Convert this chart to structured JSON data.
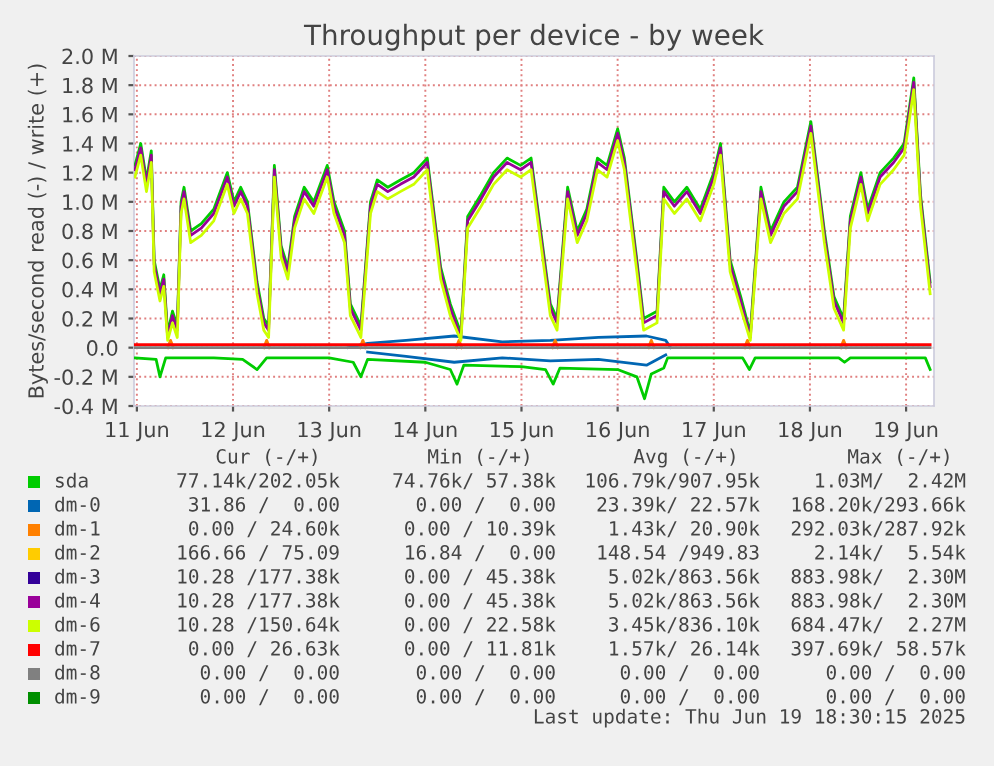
{
  "chart_data": {
    "type": "line",
    "title": "Throughput per device - by week",
    "ylabel": "Bytes/second read (-) / write (+)",
    "x": [
      "2025-06-11T11:31",
      "2025-06-11T12:58",
      "2025-06-11T14:24",
      "2025-06-11T15:36",
      "2025-06-11T16:19",
      "2025-06-11T17:46",
      "2025-06-11T18:43",
      "2025-06-11T19:41",
      "2025-06-11T20:53",
      "2025-06-11T22:05",
      "2025-06-11T23:02",
      "2025-06-11T23:46",
      "2025-06-12T01:26",
      "2025-06-12T04:05",
      "2025-06-12T07:12",
      "2025-06-12T10:34",
      "2025-06-12T12:14",
      "2025-06-12T13:55",
      "2025-06-12T15:36",
      "2025-06-12T18:00",
      "2025-06-12T19:41",
      "2025-06-12T20:53",
      "2025-06-12T22:19",
      "2025-06-13T00:00",
      "2025-06-13T01:41",
      "2025-06-13T03:22",
      "2025-06-13T05:46",
      "2025-06-13T08:10",
      "2025-06-13T11:31",
      "2025-06-13T13:12",
      "2025-06-13T15:50",
      "2025-06-13T17:17",
      "2025-06-13T19:55",
      "2025-06-13T20:38",
      "2025-06-13T22:19",
      "2025-06-14T00:00",
      "2025-06-14T02:38",
      "2025-06-14T05:46",
      "2025-06-14T09:07",
      "2025-06-14T12:29",
      "2025-06-14T15:50",
      "2025-06-14T18:14",
      "2025-06-14T20:53",
      "2025-06-14T22:34",
      "2025-06-15T01:55",
      "2025-06-15T05:02",
      "2025-06-15T08:24",
      "2025-06-15T11:46",
      "2025-06-15T14:24",
      "2025-06-15T16:48",
      "2025-06-15T19:12",
      "2025-06-15T20:53",
      "2025-06-15T23:31",
      "2025-06-16T01:55",
      "2025-06-16T04:19",
      "2025-06-16T06:58",
      "2025-06-16T09:22",
      "2025-06-16T12:00",
      "2025-06-16T13:41",
      "2025-06-16T16:48",
      "2025-06-16T18:29",
      "2025-06-16T21:50",
      "2025-06-16T23:31",
      "2025-06-17T02:10",
      "2025-06-17T05:17",
      "2025-06-17T08:38",
      "2025-06-17T12:00",
      "2025-06-17T13:41",
      "2025-06-17T16:05",
      "2025-06-17T18:43",
      "2025-06-17T21:07",
      "2025-06-17T23:46",
      "2025-06-18T02:10",
      "2025-06-18T05:31",
      "2025-06-18T08:53",
      "2025-06-18T12:14",
      "2025-06-18T15:36",
      "2025-06-18T18:00",
      "2025-06-18T20:24",
      "2025-06-18T22:05",
      "2025-06-19T00:43",
      "2025-06-19T02:24",
      "2025-06-19T05:31",
      "2025-06-19T08:53",
      "2025-06-19T11:31",
      "2025-06-19T13:55",
      "2025-06-19T15:36",
      "2025-06-19T18:00"
    ],
    "series": [
      {
        "name": "sda",
        "color": "#00cc00",
        "values": [
          1.25,
          1.4,
          1.15,
          1.35,
          0.6,
          0.4,
          0.5,
          0.1,
          0.25,
          0.15,
          1.0,
          1.1,
          0.8,
          0.85,
          0.95,
          1.2,
          1.0,
          1.1,
          1.0,
          0.45,
          0.2,
          0.15,
          1.25,
          0.7,
          0.55,
          0.9,
          1.1,
          1.0,
          1.25,
          1.0,
          0.8,
          0.3,
          0.15,
          0.4,
          1.0,
          1.15,
          1.1,
          1.15,
          1.2,
          1.3,
          0.55,
          0.3,
          0.1,
          0.9,
          1.05,
          1.2,
          1.3,
          1.25,
          1.3,
          0.8,
          0.3,
          0.2,
          1.1,
          0.8,
          0.95,
          1.3,
          1.25,
          1.5,
          1.3,
          0.6,
          0.2,
          0.25,
          1.1,
          1.0,
          1.1,
          0.95,
          1.2,
          1.4,
          0.6,
          0.35,
          0.1,
          1.1,
          0.8,
          1.0,
          1.1,
          1.55,
          0.8,
          0.35,
          0.2,
          0.9,
          1.2,
          0.95,
          1.2,
          1.3,
          1.4,
          1.85,
          1.05,
          0.45
        ]
      },
      {
        "color": "#00cc00",
        "x": [
          "2025-06-11T11:31",
          "2025-06-11T16:48",
          "2025-06-11T17:46",
          "2025-06-11T19:12",
          "2025-06-12T07:12",
          "2025-06-12T14:24",
          "2025-06-12T18:00",
          "2025-06-12T20:24",
          "2025-06-13T12:00",
          "2025-06-13T18:00",
          "2025-06-13T19:55",
          "2025-06-13T21:36",
          "2025-06-14T12:00",
          "2025-06-14T18:14",
          "2025-06-14T19:55",
          "2025-06-14T21:36",
          "2025-06-15T12:00",
          "2025-06-15T18:00",
          "2025-06-15T19:55",
          "2025-06-15T21:36",
          "2025-06-16T12:00",
          "2025-06-16T16:48",
          "2025-06-16T18:43",
          "2025-06-16T20:24",
          "2025-06-16T23:31",
          "2025-06-17T00:29",
          "2025-06-17T19:12",
          "2025-06-17T20:53",
          "2025-06-17T22:19",
          "2025-06-18T19:12",
          "2025-06-18T20:38",
          "2025-06-18T22:05",
          "2025-06-19T16:48",
          "2025-06-19T18:00"
        ],
        "values": [
          -0.07,
          -0.08,
          -0.2,
          -0.07,
          -0.07,
          -0.08,
          -0.15,
          -0.07,
          -0.07,
          -0.1,
          -0.2,
          -0.08,
          -0.1,
          -0.15,
          -0.25,
          -0.12,
          -0.13,
          -0.15,
          -0.25,
          -0.14,
          -0.15,
          -0.2,
          -0.35,
          -0.18,
          -0.14,
          -0.07,
          -0.07,
          -0.15,
          -0.07,
          -0.07,
          -0.1,
          -0.07,
          -0.07,
          -0.15
        ]
      },
      {
        "name": "dm-0",
        "color": "#0066b3",
        "x": [
          "2025-06-13T16:48",
          "2025-06-13T21:36",
          "2025-06-14T07:12",
          "2025-06-14T19:12",
          "2025-06-15T07:12",
          "2025-06-15T19:12",
          "2025-06-16T07:12",
          "2025-06-16T19:12",
          "2025-06-17T00:00",
          "2025-06-17T01:12"
        ],
        "values": [
          0,
          0.03,
          0.05,
          0.08,
          0.04,
          0.05,
          0.07,
          0.08,
          0.05,
          0
        ]
      },
      {
        "color": "#0066b3",
        "x": [
          "2025-06-13T21:36",
          "2025-06-14T07:12",
          "2025-06-14T19:12",
          "2025-06-15T07:12",
          "2025-06-15T19:12",
          "2025-06-16T07:12",
          "2025-06-16T19:12",
          "2025-06-17T00:00"
        ],
        "values": [
          -0.03,
          -0.06,
          -0.1,
          -0.07,
          -0.09,
          -0.08,
          -0.12,
          -0.05
        ]
      },
      {
        "name": "dm-1",
        "color": "#ff8000",
        "x": [
          "2025-06-11T19:41",
          "2025-06-11T20:24",
          "2025-06-11T21:07",
          "2025-06-11T22:00",
          "2025-06-12T19:41",
          "2025-06-12T20:24",
          "2025-06-12T21:07",
          "2025-06-12T22:00",
          "2025-06-13T19:41",
          "2025-06-13T20:24",
          "2025-06-13T21:07",
          "2025-06-13T22:00",
          "2025-06-14T19:41",
          "2025-06-14T20:24",
          "2025-06-14T21:07",
          "2025-06-14T22:00",
          "2025-06-15T19:41",
          "2025-06-15T20:24",
          "2025-06-15T21:07",
          "2025-06-15T22:00",
          "2025-06-16T19:41",
          "2025-06-16T20:24",
          "2025-06-16T21:07",
          "2025-06-16T22:00",
          "2025-06-17T19:41",
          "2025-06-17T20:24",
          "2025-06-17T21:07",
          "2025-06-17T22:00",
          "2025-06-18T19:41",
          "2025-06-18T20:24",
          "2025-06-18T21:07"
        ],
        "values": [
          0,
          0.05,
          0,
          null,
          0,
          0.05,
          0,
          null,
          0,
          0.05,
          0,
          null,
          0,
          0.05,
          0,
          null,
          0,
          0.05,
          0,
          null,
          0,
          0.05,
          0,
          null,
          0,
          0.05,
          0,
          null,
          0,
          0.05,
          0
        ]
      },
      {
        "name": "dm-2",
        "color": "#ffcc00",
        "values": [
          null,
          null,
          null,
          null,
          null,
          null,
          null,
          null,
          null,
          null,
          null,
          null,
          null,
          null,
          null,
          null,
          null,
          null,
          null,
          null,
          null,
          null,
          null,
          null,
          null,
          null,
          null,
          null,
          null,
          null,
          null,
          null,
          null,
          null,
          null,
          null,
          null,
          null,
          null,
          null,
          null,
          null,
          null,
          null,
          null,
          null,
          null,
          null,
          null,
          null,
          null,
          null,
          null,
          null,
          null,
          null,
          null,
          null,
          null,
          null,
          null,
          null,
          null,
          null,
          null,
          null,
          null,
          null,
          null,
          null,
          null,
          null,
          null,
          null,
          null,
          null,
          null,
          null,
          null,
          null,
          null,
          null,
          null,
          null,
          null,
          null,
          null,
          null
        ]
      },
      {
        "name": "dm-3",
        "color": "#330099",
        "values": [
          null,
          null,
          null,
          null,
          null,
          null,
          null,
          null,
          null,
          null,
          null,
          null,
          null,
          null,
          null,
          null,
          null,
          null,
          null,
          null,
          null,
          null,
          null,
          null,
          null,
          null,
          null,
          null,
          null,
          null,
          null,
          null,
          null,
          null,
          null,
          null,
          null,
          null,
          null,
          null,
          null,
          null,
          null,
          null,
          null,
          null,
          null,
          null,
          null,
          null,
          null,
          null,
          null,
          null,
          null,
          null,
          null,
          null,
          null,
          null,
          null,
          null,
          null,
          null,
          null,
          null,
          null,
          null,
          null,
          null,
          null,
          null,
          null,
          null,
          null,
          null,
          null,
          null,
          null,
          null,
          null,
          null,
          null,
          null,
          null,
          null,
          null,
          null
        ]
      },
      {
        "name": "dm-4",
        "color": "#990099",
        "values": [
          1.22,
          1.37,
          1.12,
          1.32,
          0.57,
          0.37,
          0.47,
          0.07,
          0.22,
          0.12,
          0.97,
          1.07,
          0.77,
          0.82,
          0.92,
          1.17,
          0.97,
          1.07,
          0.97,
          0.42,
          0.17,
          0.12,
          1.22,
          0.67,
          0.52,
          0.87,
          1.07,
          0.97,
          1.22,
          0.97,
          0.77,
          0.27,
          0.12,
          0.37,
          0.97,
          1.12,
          1.07,
          1.12,
          1.17,
          1.27,
          0.52,
          0.27,
          0.07,
          0.87,
          1.02,
          1.17,
          1.27,
          1.22,
          1.27,
          0.77,
          0.27,
          0.17,
          1.07,
          0.77,
          0.92,
          1.27,
          1.22,
          1.47,
          1.27,
          0.57,
          0.17,
          0.22,
          1.07,
          0.97,
          1.07,
          0.92,
          1.17,
          1.37,
          0.57,
          0.32,
          0.07,
          1.07,
          0.77,
          0.97,
          1.07,
          1.52,
          0.77,
          0.32,
          0.17,
          0.87,
          1.17,
          0.92,
          1.17,
          1.27,
          1.37,
          1.82,
          1.02,
          0.42
        ]
      },
      {
        "name": "dm-6",
        "color": "#ccff00",
        "values": [
          1.17,
          1.32,
          1.07,
          1.27,
          0.52,
          0.32,
          0.42,
          0.05,
          0.17,
          0.07,
          0.92,
          1.02,
          0.72,
          0.77,
          0.87,
          1.12,
          0.92,
          1.02,
          0.92,
          0.37,
          0.12,
          0.07,
          1.17,
          0.62,
          0.47,
          0.82,
          1.02,
          0.92,
          1.17,
          0.92,
          0.72,
          0.22,
          0.07,
          0.32,
          0.92,
          1.07,
          1.02,
          1.07,
          1.12,
          1.22,
          0.47,
          0.22,
          0.05,
          0.82,
          0.97,
          1.12,
          1.22,
          1.17,
          1.22,
          0.72,
          0.22,
          0.12,
          1.02,
          0.72,
          0.87,
          1.22,
          1.17,
          1.42,
          1.22,
          0.52,
          0.12,
          0.17,
          1.02,
          0.92,
          1.02,
          0.87,
          1.12,
          1.32,
          0.52,
          0.27,
          0.05,
          1.02,
          0.72,
          0.92,
          1.02,
          1.47,
          0.72,
          0.27,
          0.12,
          0.82,
          1.12,
          0.87,
          1.12,
          1.22,
          1.32,
          1.77,
          0.97,
          0.37
        ]
      },
      {
        "name": "dm-7",
        "color": "#ff0000",
        "x": [
          "2025-06-11T11:31",
          "2025-06-19T18:00"
        ],
        "values": [
          0.02,
          0.02
        ]
      },
      {
        "name": "dm-8",
        "color": "#808080",
        "x": [
          "2025-06-11T11:31",
          "2025-06-19T18:00"
        ],
        "values": [
          0,
          0
        ]
      },
      {
        "name": "dm-9",
        "color": "#008f00",
        "values": [
          null,
          null,
          null,
          null,
          null,
          null,
          null,
          null,
          null,
          null,
          null,
          null,
          null,
          null,
          null,
          null,
          null,
          null,
          null,
          null,
          null,
          null,
          null,
          null,
          null,
          null,
          null,
          null,
          null,
          null,
          null,
          null,
          null,
          null,
          null,
          null,
          null,
          null,
          null,
          null,
          null,
          null,
          null,
          null,
          null,
          null,
          null,
          null,
          null,
          null,
          null,
          null,
          null,
          null,
          null,
          null,
          null,
          null,
          null,
          null,
          null,
          null,
          null,
          null,
          null,
          null,
          null,
          null,
          null,
          null,
          null,
          null,
          null,
          null,
          null,
          null,
          null,
          null,
          null,
          null,
          null,
          null,
          null,
          null,
          null,
          null,
          null,
          null
        ]
      }
    ],
    "xlim": [
      "2025-06-11T11:17",
      "2025-06-19T18:58"
    ],
    "xticks": [
      {
        "value": "2025-06-11T12:00",
        "label": "11 Jun"
      },
      {
        "value": "2025-06-12T12:00",
        "label": "12 Jun"
      },
      {
        "value": "2025-06-13T12:00",
        "label": "13 Jun"
      },
      {
        "value": "2025-06-14T12:00",
        "label": "14 Jun"
      },
      {
        "value": "2025-06-15T12:00",
        "label": "15 Jun"
      },
      {
        "value": "2025-06-16T12:00",
        "label": "16 Jun"
      },
      {
        "value": "2025-06-17T12:00",
        "label": "17 Jun"
      },
      {
        "value": "2025-06-18T12:00",
        "label": "18 Jun"
      },
      {
        "value": "2025-06-19T12:00",
        "label": "19 Jun"
      }
    ],
    "ylim": [
      -0.4,
      2.0
    ],
    "yticks": [
      {
        "value": -0.4,
        "label": "-0.4 M"
      },
      {
        "value": -0.2,
        "label": "-0.2 M"
      },
      {
        "value": 0,
        "label": "0.0"
      },
      {
        "value": 0.2,
        "label": "0.2 M"
      },
      {
        "value": 0.4,
        "label": "0.4 M"
      },
      {
        "value": 0.6,
        "label": "0.6 M"
      },
      {
        "value": 0.8,
        "label": "0.8 M"
      },
      {
        "value": 1.0,
        "label": "1.0 M"
      },
      {
        "value": 1.2,
        "label": "1.2 M"
      },
      {
        "value": 1.4,
        "label": "1.4 M"
      },
      {
        "value": 1.6,
        "label": "1.6 M"
      },
      {
        "value": 1.8,
        "label": "1.8 M"
      },
      {
        "value": 2.0,
        "label": "2.0 M"
      }
    ],
    "grid": true,
    "legend": "bottom",
    "marker": "none",
    "line_style": "solid",
    "annotations": [
      "Cur (-/+)",
      "Min (-/+)",
      "Avg (-/+)",
      "Max (-/+)",
      "77.14k/202.05k",
      "74.76k/ 57.38k",
      "106.79k/907.95k",
      "1.03M/  2.42M",
      "31.86 /  0.00",
      "0.00 /  0.00",
      "23.39k/ 22.57k",
      "168.20k/293.66k",
      "0.00 / 24.60k",
      "0.00 / 10.39k",
      "1.43k/ 20.90k",
      "292.03k/287.92k",
      "166.66 / 75.09",
      "16.84 /  0.00",
      "148.54 /949.83",
      "2.14k/  5.54k",
      "10.28 /177.38k",
      "0.00 / 45.38k",
      "5.02k/863.56k",
      "883.98k/  2.30M",
      "10.28 /177.38k",
      "0.00 / 45.38k",
      "5.02k/863.56k",
      "883.98k/  2.30M",
      "10.28 /150.64k",
      "0.00 / 22.58k",
      "3.45k/836.10k",
      "684.47k/  2.27M",
      "0.00 / 26.63k",
      "0.00 / 11.81k",
      "1.57k/ 26.14k",
      "397.69k/ 58.57k",
      "0.00 /  0.00",
      "0.00 /  0.00",
      "0.00 /  0.00",
      "0.00 /  0.00",
      "0.00 /  0.00",
      "0.00 /  0.00",
      "0.00 /  0.00",
      "0.00 /  0.00",
      "Last update: Thu Jun 19 18:30:15 2025"
    ]
  }
}
